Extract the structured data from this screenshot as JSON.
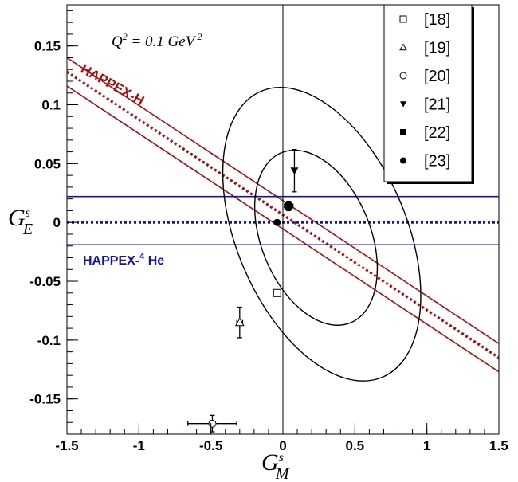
{
  "chart_data": {
    "type": "scatter",
    "xlabel": "G",
    "xlabel_sup": "s",
    "xlabel_sub": "M",
    "ylabel": "G",
    "ylabel_sup": "s",
    "ylabel_sub": "E",
    "xlim": [
      -1.5,
      1.5
    ],
    "ylim": [
      -0.18,
      0.185
    ],
    "x_ticks": [
      -1.5,
      -1,
      -0.5,
      0,
      0.5,
      1,
      1.5
    ],
    "x_tick_labels": [
      "-1.5",
      "-1",
      "-0.5",
      "0",
      "0.5",
      "1",
      "1.5"
    ],
    "y_ticks": [
      -0.15,
      -0.1,
      -0.05,
      0,
      0.05,
      0.1,
      0.15
    ],
    "y_tick_labels": [
      "-0.15",
      "-0.1",
      "-0.05",
      "0",
      "0.05",
      "0.1",
      "0.15"
    ],
    "annotation": {
      "q2_text": "Q",
      "q2_sup": "2",
      "q2_mid": " = 0.1 GeV",
      "q2_sup2": " 2"
    },
    "bands": [
      {
        "label": "HAPPEX-H",
        "color": "#a50f0f",
        "center": {
          "x0": -1.5,
          "y0": 0.128,
          "x1": 1.5,
          "y1": -0.115
        },
        "upper": {
          "x0": -1.5,
          "y0": 0.14,
          "x1": 1.5,
          "y1": -0.103
        },
        "lower": {
          "x0": -1.5,
          "y0": 0.116,
          "x1": 1.5,
          "y1": -0.127
        }
      },
      {
        "label_main": "HAPPEX-",
        "label_sup": "4",
        "label_tail": " He",
        "color": "#1414a0",
        "center": 0.0,
        "upper": 0.022,
        "lower": -0.019
      }
    ],
    "ellipses": [
      {
        "cx": 0.27,
        "cy": -0.01,
        "rx": 0.59,
        "ry": 0.022,
        "angle_deg": -23
      },
      {
        "cx": 0.23,
        "cy": -0.013,
        "rx": 0.38,
        "ry": 0.013,
        "angle_deg": -22
      }
    ],
    "series": [
      {
        "name": "[18]",
        "marker": "open-square",
        "points": [
          {
            "x": -0.04,
            "y": -0.06
          }
        ]
      },
      {
        "name": "[19]",
        "marker": "open-triangle",
        "points": [
          {
            "x": -0.3,
            "y": -0.085,
            "yerr": 0.013,
            "xerr": 0.02
          }
        ]
      },
      {
        "name": "[20]",
        "marker": "open-circle",
        "points": [
          {
            "x": -0.49,
            "y": -0.171,
            "xerr": 0.17,
            "yerr": 0.007
          }
        ]
      },
      {
        "name": "[21]",
        "marker": "filled-triangle-down",
        "points": [
          {
            "x": 0.08,
            "y": 0.044,
            "yerr": 0.018
          }
        ]
      },
      {
        "name": "[22]",
        "marker": "filled-square",
        "points": [
          {
            "x": 0.04,
            "y": 0.014,
            "xerr": 0.03,
            "yerr": 0.004
          }
        ]
      },
      {
        "name": "[23]",
        "marker": "filled-circle",
        "points": [
          {
            "x": -0.04,
            "y": 0.0
          }
        ]
      }
    ]
  }
}
